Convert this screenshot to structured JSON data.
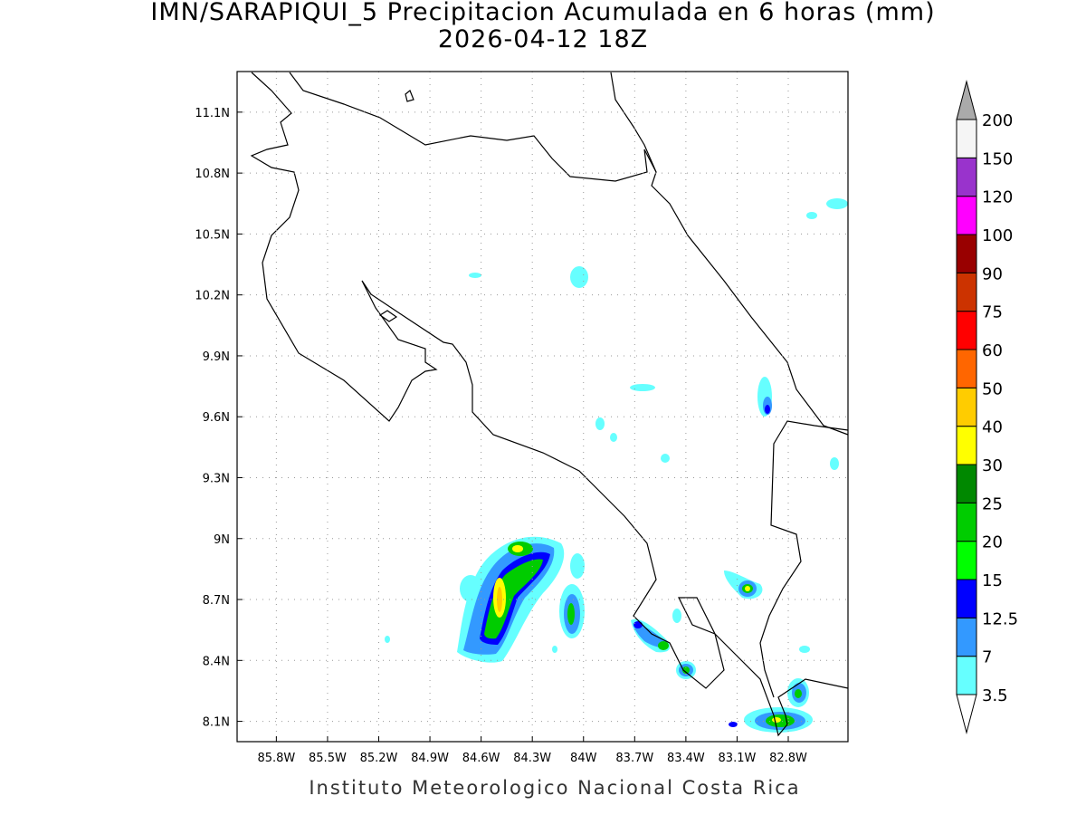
{
  "title": "IMN/SARAPIQUI_5 Precipitacion Acumulada en 6 horas (mm)",
  "subtitle": "2026-04-12 18Z",
  "footer": "Instituto Meteorologico Nacional Costa Rica",
  "map": {
    "xlim": [
      -86.03,
      -82.45
    ],
    "ylim": [
      8.0,
      11.3
    ],
    "xticks": [
      {
        "value": -85.8,
        "label": "85.8W"
      },
      {
        "value": -85.5,
        "label": "85.5W"
      },
      {
        "value": -85.2,
        "label": "85.2W"
      },
      {
        "value": -84.9,
        "label": "84.9W"
      },
      {
        "value": -84.6,
        "label": "84.6W"
      },
      {
        "value": -84.3,
        "label": "84.3W"
      },
      {
        "value": -84.0,
        "label": "84W"
      },
      {
        "value": -83.7,
        "label": "83.7W"
      },
      {
        "value": -83.4,
        "label": "83.4W"
      },
      {
        "value": -83.1,
        "label": "83.1W"
      },
      {
        "value": -82.8,
        "label": "82.8W"
      }
    ],
    "yticks": [
      {
        "value": 8.1,
        "label": "8.1N"
      },
      {
        "value": 8.4,
        "label": "8.4N"
      },
      {
        "value": 8.7,
        "label": "8.7N"
      },
      {
        "value": 9.0,
        "label": "9N"
      },
      {
        "value": 9.3,
        "label": "9.3N"
      },
      {
        "value": 9.6,
        "label": "9.6N"
      },
      {
        "value": 9.9,
        "label": "9.9N"
      },
      {
        "value": 10.2,
        "label": "10.2N"
      },
      {
        "value": 10.5,
        "label": "10.5N"
      },
      {
        "value": 10.8,
        "label": "10.8N"
      },
      {
        "value": 11.1,
        "label": "11.1N"
      }
    ],
    "grid": true
  },
  "colorbar": {
    "levels": [
      3.5,
      7,
      12.5,
      15,
      20,
      25,
      30,
      40,
      50,
      60,
      75,
      90,
      100,
      120,
      150,
      200
    ],
    "colors": [
      "#66ffff",
      "#3399ff",
      "#0000ff",
      "#00ff00",
      "#00cc00",
      "#008800",
      "#ffff00",
      "#ffcc00",
      "#ff6600",
      "#ff0000",
      "#cc3300",
      "#990000",
      "#ff00ff",
      "#9933cc",
      "#f5f5f5"
    ]
  }
}
